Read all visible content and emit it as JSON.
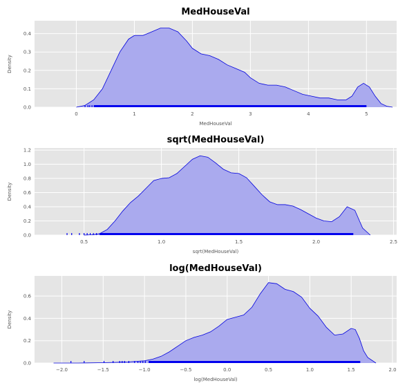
{
  "colors": {
    "panel_bg": "#e5e5e5",
    "grid": "#ffffff",
    "fill": "#aaaaee",
    "line": "#0000dd",
    "rug": "#0000ee"
  },
  "chart_data": [
    {
      "type": "area",
      "title": "MedHouseVal",
      "xlabel": "MedHouseVal",
      "ylabel": "Density",
      "xlim": [
        -0.72,
        5.52
      ],
      "ylim": [
        0,
        0.47
      ],
      "xticks": [
        0,
        1,
        2,
        3,
        4,
        5
      ],
      "xtick_labels": [
        "0",
        "1",
        "2",
        "3",
        "4",
        "5"
      ],
      "yticks": [
        0.0,
        0.1,
        0.2,
        0.3,
        0.4
      ],
      "ytick_labels": [
        "0.0",
        "0.1",
        "0.2",
        "0.3",
        "0.4"
      ],
      "grid": true,
      "series": [
        {
          "x": [
            0.0,
            0.15,
            0.3,
            0.45,
            0.6,
            0.75,
            0.9,
            1.0,
            1.15,
            1.3,
            1.45,
            1.6,
            1.75,
            1.9,
            2.0,
            2.15,
            2.3,
            2.45,
            2.6,
            2.75,
            2.9,
            3.0,
            3.15,
            3.3,
            3.45,
            3.6,
            3.75,
            3.9,
            4.05,
            4.2,
            4.35,
            4.5,
            4.65,
            4.75,
            4.85,
            4.95,
            5.05,
            5.15,
            5.25,
            5.35,
            5.45
          ],
          "y": [
            0.0,
            0.01,
            0.04,
            0.1,
            0.2,
            0.3,
            0.37,
            0.39,
            0.39,
            0.41,
            0.43,
            0.43,
            0.41,
            0.36,
            0.32,
            0.29,
            0.28,
            0.26,
            0.23,
            0.21,
            0.19,
            0.16,
            0.13,
            0.12,
            0.12,
            0.11,
            0.09,
            0.07,
            0.06,
            0.05,
            0.05,
            0.04,
            0.04,
            0.06,
            0.11,
            0.13,
            0.11,
            0.06,
            0.02,
            0.005,
            0.0
          ]
        }
      ],
      "rug": {
        "dense_range": [
          0.3,
          5.0
        ],
        "sparse_points": [
          0.15,
          0.2,
          0.23,
          0.27
        ]
      }
    },
    {
      "type": "area",
      "title": "sqrt(MedHouseVal)",
      "xlabel": "sqrt(MedHouseVal)",
      "ylabel": "Density",
      "xlim": [
        0.18,
        2.52
      ],
      "ylim": [
        0,
        1.23
      ],
      "xticks": [
        0.5,
        1.0,
        1.5,
        2.0,
        2.5
      ],
      "xtick_labels": [
        "0.5",
        "1.0",
        "1.5",
        "2.0",
        "2.5"
      ],
      "yticks": [
        0.0,
        0.2,
        0.4,
        0.6,
        0.8,
        1.0,
        1.2
      ],
      "ytick_labels": [
        "0.0",
        "0.2",
        "0.4",
        "0.6",
        "0.8",
        "1.0",
        "1.2"
      ],
      "grid": true,
      "series": [
        {
          "x": [
            0.5,
            0.55,
            0.6,
            0.65,
            0.7,
            0.75,
            0.8,
            0.85,
            0.9,
            0.95,
            1.0,
            1.05,
            1.1,
            1.15,
            1.2,
            1.25,
            1.3,
            1.35,
            1.4,
            1.45,
            1.5,
            1.55,
            1.6,
            1.65,
            1.7,
            1.75,
            1.8,
            1.85,
            1.9,
            1.95,
            2.0,
            2.05,
            2.1,
            2.15,
            2.2,
            2.25,
            2.3,
            2.35
          ],
          "y": [
            0.0,
            0.005,
            0.02,
            0.08,
            0.2,
            0.34,
            0.46,
            0.55,
            0.66,
            0.77,
            0.8,
            0.81,
            0.87,
            0.97,
            1.07,
            1.12,
            1.1,
            1.02,
            0.93,
            0.88,
            0.87,
            0.81,
            0.69,
            0.57,
            0.47,
            0.43,
            0.43,
            0.41,
            0.36,
            0.3,
            0.24,
            0.2,
            0.19,
            0.26,
            0.4,
            0.35,
            0.1,
            0.0
          ]
        }
      ],
      "rug": {
        "dense_range": [
          0.6,
          2.24
        ],
        "sparse_points": [
          0.39,
          0.42,
          0.47,
          0.5,
          0.52,
          0.54,
          0.56,
          0.58
        ]
      }
    },
    {
      "type": "area",
      "title": "log(MedHouseVal)",
      "xlabel": "log(MedHouseVal)",
      "ylabel": "Density",
      "xlim": [
        -2.33,
        2.05
      ],
      "ylim": [
        0,
        0.78
      ],
      "xticks": [
        -2.0,
        -1.5,
        -1.0,
        -0.5,
        0.0,
        0.5,
        1.0,
        1.5,
        2.0
      ],
      "xtick_labels": [
        "−2.0",
        "−1.5",
        "−1.0",
        "−0.5",
        "0.0",
        "0.5",
        "1.0",
        "1.5",
        "2.0"
      ],
      "yticks": [
        0.0,
        0.2,
        0.4,
        0.6
      ],
      "ytick_labels": [
        "0.0",
        "0.2",
        "0.4",
        "0.6"
      ],
      "grid": true,
      "series": [
        {
          "x": [
            -2.1,
            -1.8,
            -1.5,
            -1.2,
            -1.0,
            -0.9,
            -0.8,
            -0.7,
            -0.6,
            -0.5,
            -0.4,
            -0.3,
            -0.2,
            -0.1,
            0.0,
            0.1,
            0.2,
            0.3,
            0.4,
            0.5,
            0.6,
            0.7,
            0.8,
            0.9,
            1.0,
            1.1,
            1.2,
            1.3,
            1.4,
            1.5,
            1.55,
            1.6,
            1.65,
            1.7,
            1.8
          ],
          "y": [
            0.0,
            0.0,
            0.003,
            0.01,
            0.02,
            0.035,
            0.06,
            0.1,
            0.15,
            0.2,
            0.23,
            0.25,
            0.28,
            0.33,
            0.39,
            0.41,
            0.43,
            0.5,
            0.62,
            0.72,
            0.71,
            0.66,
            0.64,
            0.59,
            0.49,
            0.42,
            0.32,
            0.25,
            0.26,
            0.31,
            0.3,
            0.22,
            0.11,
            0.05,
            0.0
          ]
        }
      ],
      "rug": {
        "dense_range": [
          -0.95,
          1.61
        ],
        "sparse_points": [
          -1.89,
          -1.73,
          -1.49,
          -1.38,
          -1.3,
          -1.27,
          -1.24,
          -1.19,
          -1.12,
          -1.08,
          -1.05,
          -1.02,
          -0.99
        ]
      }
    }
  ]
}
